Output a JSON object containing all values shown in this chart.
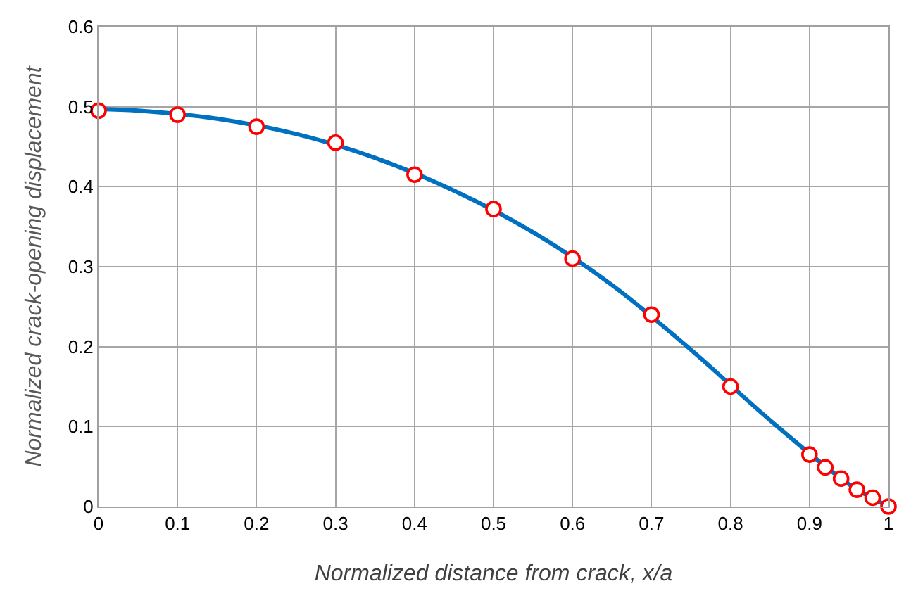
{
  "chart_data": {
    "type": "line",
    "xlabel": "Normalized distance from crack, x/a",
    "ylabel": "Normalized crack-opening displacement",
    "xlim": [
      0,
      1
    ],
    "xticks": [
      0,
      0.1,
      0.2,
      0.3,
      0.4,
      0.5,
      0.6,
      0.7,
      0.8,
      0.9,
      1
    ],
    "ylim": [
      0,
      0.6
    ],
    "yticks": [
      0,
      0.1,
      0.2,
      0.3,
      0.4,
      0.5,
      0.6
    ],
    "grid": true,
    "series": [
      {
        "color": "#0070c0",
        "marker": "none",
        "x": [
          0,
          0.05,
          0.15,
          0.25,
          0.35,
          0.45,
          0.55,
          0.65,
          0.75,
          0.85,
          0.95,
          1
        ],
        "values": [
          0.497,
          0.495,
          0.485,
          0.466,
          0.436,
          0.395,
          0.343,
          0.277,
          0.196,
          0.108,
          0.028,
          0
        ]
      },
      {
        "type": "scatter",
        "color": "#ff0000",
        "marker": "circle",
        "x": [
          0,
          0.1,
          0.2,
          0.3,
          0.4,
          0.5,
          0.6,
          0.7,
          0.8,
          0.9,
          0.92,
          0.94,
          0.96,
          0.98,
          1
        ],
        "values": [
          0.495,
          0.49,
          0.475,
          0.455,
          0.415,
          0.372,
          0.31,
          0.24,
          0.15,
          0.065,
          0.049,
          0.035,
          0.021,
          0.011,
          0
        ]
      }
    ]
  }
}
